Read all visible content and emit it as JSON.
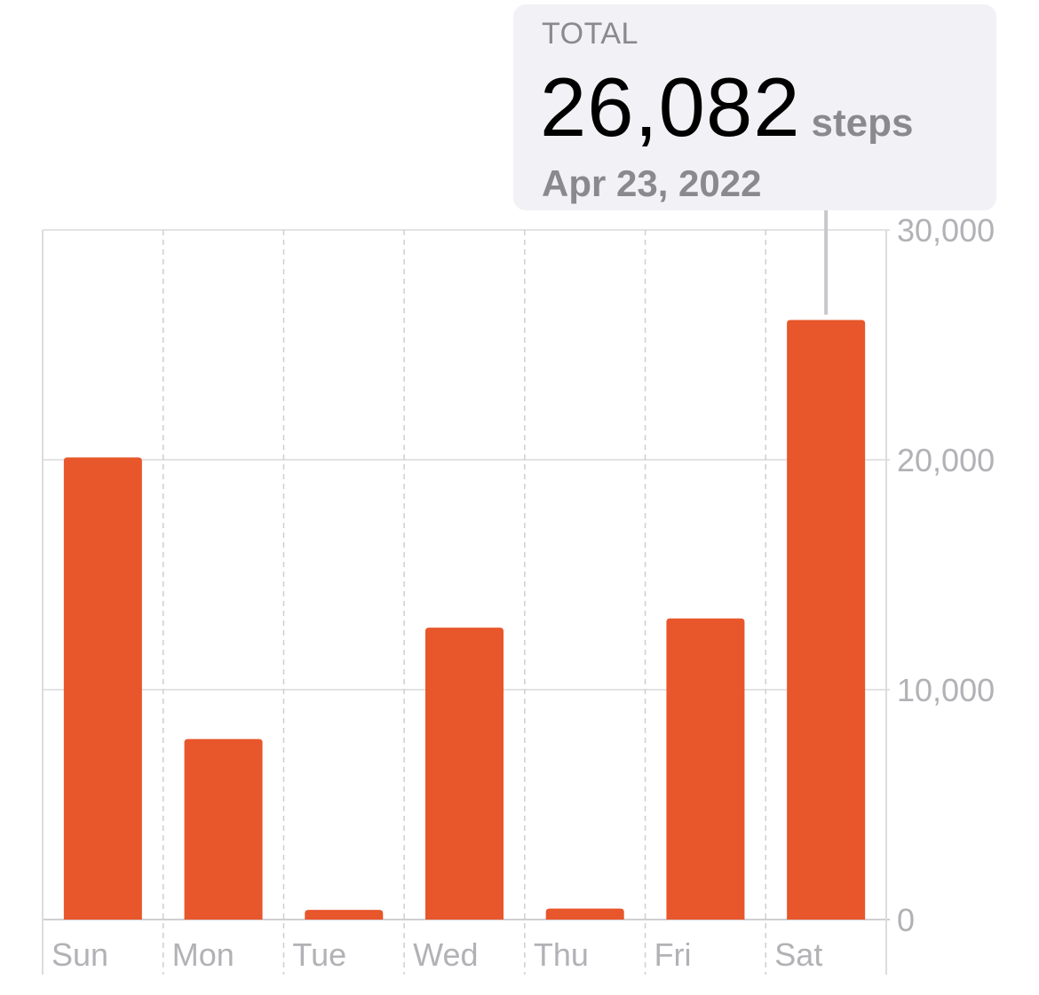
{
  "chart_data": {
    "type": "bar",
    "categories": [
      "Sun",
      "Mon",
      "Tue",
      "Wed",
      "Thu",
      "Fri",
      "Sat"
    ],
    "values": [
      20100,
      7850,
      420,
      12700,
      480,
      13100,
      26082
    ],
    "ylim": [
      0,
      30000
    ],
    "yticks": [
      "0",
      "10,000",
      "20,000",
      "30,000"
    ],
    "y_axis_side": "right",
    "grid": true,
    "highlighted_category": "Sat",
    "bar_color": "#e8562b"
  },
  "callout": {
    "label": "TOTAL",
    "value": "26,082",
    "unit": "steps",
    "date": "Apr 23, 2022"
  }
}
